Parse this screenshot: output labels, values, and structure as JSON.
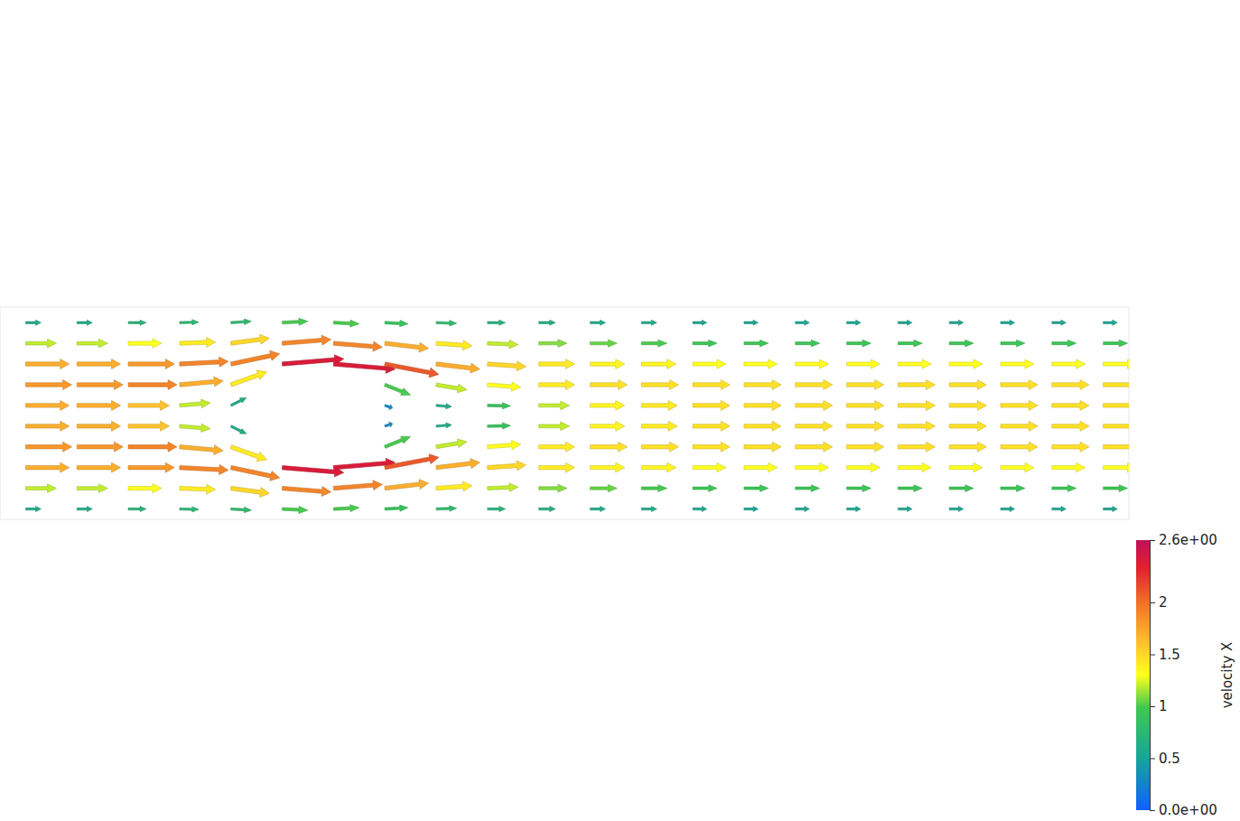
{
  "chart_data": {
    "type": "vector_field",
    "x": [
      0.05,
      0.15,
      0.25,
      0.35,
      0.45,
      0.55,
      0.65,
      0.75,
      0.85,
      0.95,
      1.05,
      1.15,
      1.25,
      1.35,
      1.45,
      1.55,
      1.65,
      1.75,
      1.85,
      1.95,
      2.05,
      2.15
    ],
    "y": [
      0.02,
      0.06,
      0.1,
      0.14,
      0.18,
      0.22,
      0.26,
      0.3,
      0.34,
      0.38
    ],
    "u": [
      [
        0.6,
        0.6,
        0.7,
        0.75,
        0.8,
        1.0,
        1.0,
        0.9,
        0.8,
        0.7,
        0.65,
        0.6,
        0.6,
        0.55,
        0.55,
        0.55,
        0.55,
        0.55,
        0.55,
        0.55,
        0.55,
        0.55
      ],
      [
        1.2,
        1.2,
        1.3,
        1.4,
        1.5,
        1.9,
        1.9,
        1.7,
        1.4,
        1.2,
        1.1,
        1.05,
        1.0,
        0.95,
        0.95,
        0.95,
        0.95,
        0.95,
        0.95,
        0.95,
        0.95,
        0.95
      ],
      [
        1.7,
        1.7,
        1.8,
        1.9,
        1.9,
        2.4,
        2.4,
        2.1,
        1.7,
        1.5,
        1.4,
        1.35,
        1.35,
        1.3,
        1.3,
        1.3,
        1.3,
        1.3,
        1.3,
        1.3,
        1.3,
        1.3
      ],
      [
        1.8,
        1.8,
        1.9,
        1.7,
        1.4,
        null,
        null,
        1.0,
        1.2,
        1.3,
        1.4,
        1.45,
        1.45,
        1.45,
        1.45,
        1.45,
        1.45,
        1.45,
        1.45,
        1.45,
        1.45,
        1.45
      ],
      [
        1.7,
        1.7,
        1.6,
        1.2,
        0.6,
        null,
        null,
        0.3,
        0.6,
        0.9,
        1.2,
        1.35,
        1.4,
        1.45,
        1.45,
        1.45,
        1.45,
        1.45,
        1.45,
        1.45,
        1.45,
        1.45
      ],
      [
        1.7,
        1.7,
        1.6,
        1.2,
        0.6,
        null,
        null,
        0.3,
        0.6,
        0.9,
        1.2,
        1.35,
        1.4,
        1.45,
        1.45,
        1.45,
        1.45,
        1.45,
        1.45,
        1.45,
        1.45,
        1.45
      ],
      [
        1.8,
        1.8,
        1.9,
        1.7,
        1.4,
        null,
        null,
        1.0,
        1.2,
        1.3,
        1.4,
        1.45,
        1.45,
        1.45,
        1.45,
        1.45,
        1.45,
        1.45,
        1.45,
        1.45,
        1.45,
        1.45
      ],
      [
        1.7,
        1.7,
        1.8,
        1.9,
        1.9,
        2.4,
        2.4,
        2.1,
        1.7,
        1.5,
        1.4,
        1.35,
        1.35,
        1.3,
        1.3,
        1.3,
        1.3,
        1.3,
        1.3,
        1.3,
        1.3,
        1.3
      ],
      [
        1.2,
        1.2,
        1.3,
        1.4,
        1.5,
        1.9,
        1.9,
        1.7,
        1.4,
        1.2,
        1.1,
        1.05,
        1.0,
        0.95,
        0.95,
        0.95,
        0.95,
        0.95,
        0.95,
        0.95,
        0.95,
        0.95
      ],
      [
        0.6,
        0.6,
        0.7,
        0.75,
        0.8,
        1.0,
        1.0,
        0.9,
        0.8,
        0.7,
        0.65,
        0.6,
        0.6,
        0.55,
        0.55,
        0.55,
        0.55,
        0.55,
        0.55,
        0.55,
        0.55,
        0.55
      ]
    ],
    "v": [
      [
        0,
        0,
        0,
        -0.02,
        -0.05,
        -0.05,
        0.05,
        0.05,
        0.03,
        0,
        0,
        0,
        0,
        0,
        0,
        0,
        0,
        0,
        0,
        0,
        0,
        0
      ],
      [
        0,
        0,
        0,
        -0.05,
        -0.2,
        -0.15,
        0.15,
        0.2,
        0.1,
        0.05,
        0,
        0,
        0,
        0,
        0,
        0,
        0,
        0,
        0,
        0,
        0,
        0
      ],
      [
        0,
        0,
        0,
        -0.1,
        -0.4,
        -0.2,
        0.2,
        0.4,
        0.2,
        0.1,
        0,
        0,
        0,
        0,
        0,
        0,
        0,
        0,
        0,
        0,
        0,
        0
      ],
      [
        0,
        0,
        0,
        -0.15,
        -0.5,
        null,
        null,
        0.4,
        0.2,
        0.1,
        0,
        0,
        0,
        0,
        0,
        0,
        0,
        0,
        0,
        0,
        0,
        0
      ],
      [
        0,
        0,
        0,
        -0.1,
        -0.3,
        null,
        null,
        0.1,
        0.05,
        0.02,
        0,
        0,
        0,
        0,
        0,
        0,
        0,
        0,
        0,
        0,
        0,
        0
      ],
      [
        0,
        0,
        0,
        0.1,
        0.3,
        null,
        null,
        -0.1,
        -0.05,
        -0.02,
        0,
        0,
        0,
        0,
        0,
        0,
        0,
        0,
        0,
        0,
        0,
        0
      ],
      [
        0,
        0,
        0,
        0.15,
        0.5,
        null,
        null,
        -0.4,
        -0.2,
        -0.1,
        0,
        0,
        0,
        0,
        0,
        0,
        0,
        0,
        0,
        0,
        0,
        0
      ],
      [
        0,
        0,
        0,
        0.1,
        0.4,
        0.2,
        -0.2,
        -0.4,
        -0.2,
        -0.1,
        0,
        0,
        0,
        0,
        0,
        0,
        0,
        0,
        0,
        0,
        0,
        0
      ],
      [
        0,
        0,
        0,
        0.05,
        0.2,
        0.15,
        -0.15,
        -0.2,
        -0.1,
        -0.05,
        0,
        0,
        0,
        0,
        0,
        0,
        0,
        0,
        0,
        0,
        0,
        0
      ],
      [
        0,
        0,
        0,
        0.02,
        0.05,
        0.05,
        -0.05,
        -0.05,
        -0.03,
        0,
        0,
        0,
        0,
        0,
        0,
        0,
        0,
        0,
        0,
        0,
        0,
        0
      ]
    ],
    "xlim": [
      0,
      2.2
    ],
    "ylim": [
      0,
      0.41
    ],
    "tick_labels": false,
    "colorbar": {
      "label": "velocity X",
      "range": [
        0,
        2.6
      ],
      "ticks": [
        {
          "value": 0,
          "label": "0.0e+00"
        },
        0.5,
        1,
        1.5,
        2,
        {
          "value": 2.6,
          "label": "2.6e+00"
        }
      ]
    }
  }
}
